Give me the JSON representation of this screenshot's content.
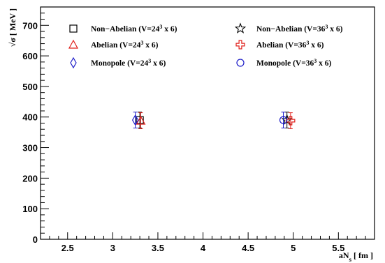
{
  "chart_data": {
    "type": "scatter",
    "xlabel": "aN_s  [ fm ]",
    "ylabel": "√σ  [ MeV ]",
    "xlim": [
      2.2,
      5.9
    ],
    "ylim": [
      0,
      760
    ],
    "xticks": [
      2.5,
      3,
      3.5,
      4,
      4.5,
      5,
      5.5
    ],
    "xtick_labels": [
      "2.5",
      "3",
      "3.5",
      "4",
      "4.5",
      "5",
      "5.5"
    ],
    "yticks": [
      0,
      100,
      200,
      300,
      400,
      500,
      600,
      700
    ],
    "ytick_labels": [
      "0",
      "100",
      "200",
      "300",
      "400",
      "500",
      "600",
      "700"
    ],
    "legend_position": "top",
    "series": [
      {
        "name": "Non−Abelian (V=24³ x 6)",
        "marker": "square",
        "color": "#000000",
        "x": [
          3.3
        ],
        "y": [
          390
        ],
        "yerr": [
          26
        ]
      },
      {
        "name": "Abelian (V=24³ x 6)",
        "marker": "triangle",
        "color": "#e0201b",
        "x": [
          3.31
        ],
        "y": [
          388
        ],
        "yerr": [
          26
        ]
      },
      {
        "name": "Monopole (V=24³ x 6)",
        "marker": "diamond",
        "color": "#1c1cc8",
        "x": [
          3.25
        ],
        "y": [
          390
        ],
        "yerr": [
          26
        ]
      },
      {
        "name": "Non−Abelian (V=36³ x 6)",
        "marker": "star",
        "color": "#000000",
        "x": [
          4.93
        ],
        "y": [
          390
        ],
        "yerr": [
          26
        ]
      },
      {
        "name": "Abelian (V=36³ x 6)",
        "marker": "cross",
        "color": "#e0201b",
        "x": [
          4.97
        ],
        "y": [
          388
        ],
        "yerr": [
          26
        ]
      },
      {
        "name": "Monopole (V=36³ x 6)",
        "marker": "circle",
        "color": "#1c1cc8",
        "x": [
          4.89
        ],
        "y": [
          390
        ],
        "yerr": [
          26
        ]
      }
    ]
  }
}
